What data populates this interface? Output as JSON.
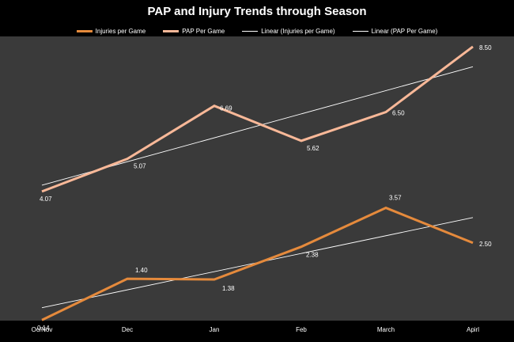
{
  "chart_data": {
    "type": "line",
    "title": "PAP and Injury Trends through Season",
    "categories": [
      "Oc/Nov",
      "Dec",
      "Jan",
      "Feb",
      "March",
      "Apirl"
    ],
    "series": [
      {
        "name": "Injuries per Game",
        "values": [
          0.14,
          1.4,
          1.38,
          2.38,
          3.57,
          2.5
        ],
        "labels": [
          "0.14",
          "1.40",
          "1.38",
          "2.38",
          "3.57",
          "2.50"
        ],
        "color": "#e58a3c",
        "kind": "data"
      },
      {
        "name": "PAP Per Game",
        "values": [
          4.07,
          5.07,
          6.69,
          5.62,
          6.5,
          8.5
        ],
        "labels": [
          "4.07",
          "5.07",
          "6.69",
          "5.62",
          "6.50",
          "8.50"
        ],
        "color": "#f8b898",
        "kind": "data"
      },
      {
        "name": "Linear (Injuries per Game)",
        "trend_of": "Injuries per Game",
        "color": "#ffffff",
        "kind": "trendline"
      },
      {
        "name": "Linear (PAP Per Game)",
        "trend_of": "PAP Per Game",
        "color": "#ffffff",
        "kind": "trendline"
      }
    ],
    "ylim": [
      0,
      9
    ],
    "grid": false,
    "legend_position": "top",
    "colors": {
      "plot_background": "#3a3a3a",
      "page_background": "#000000",
      "text": "#ffffff"
    }
  }
}
